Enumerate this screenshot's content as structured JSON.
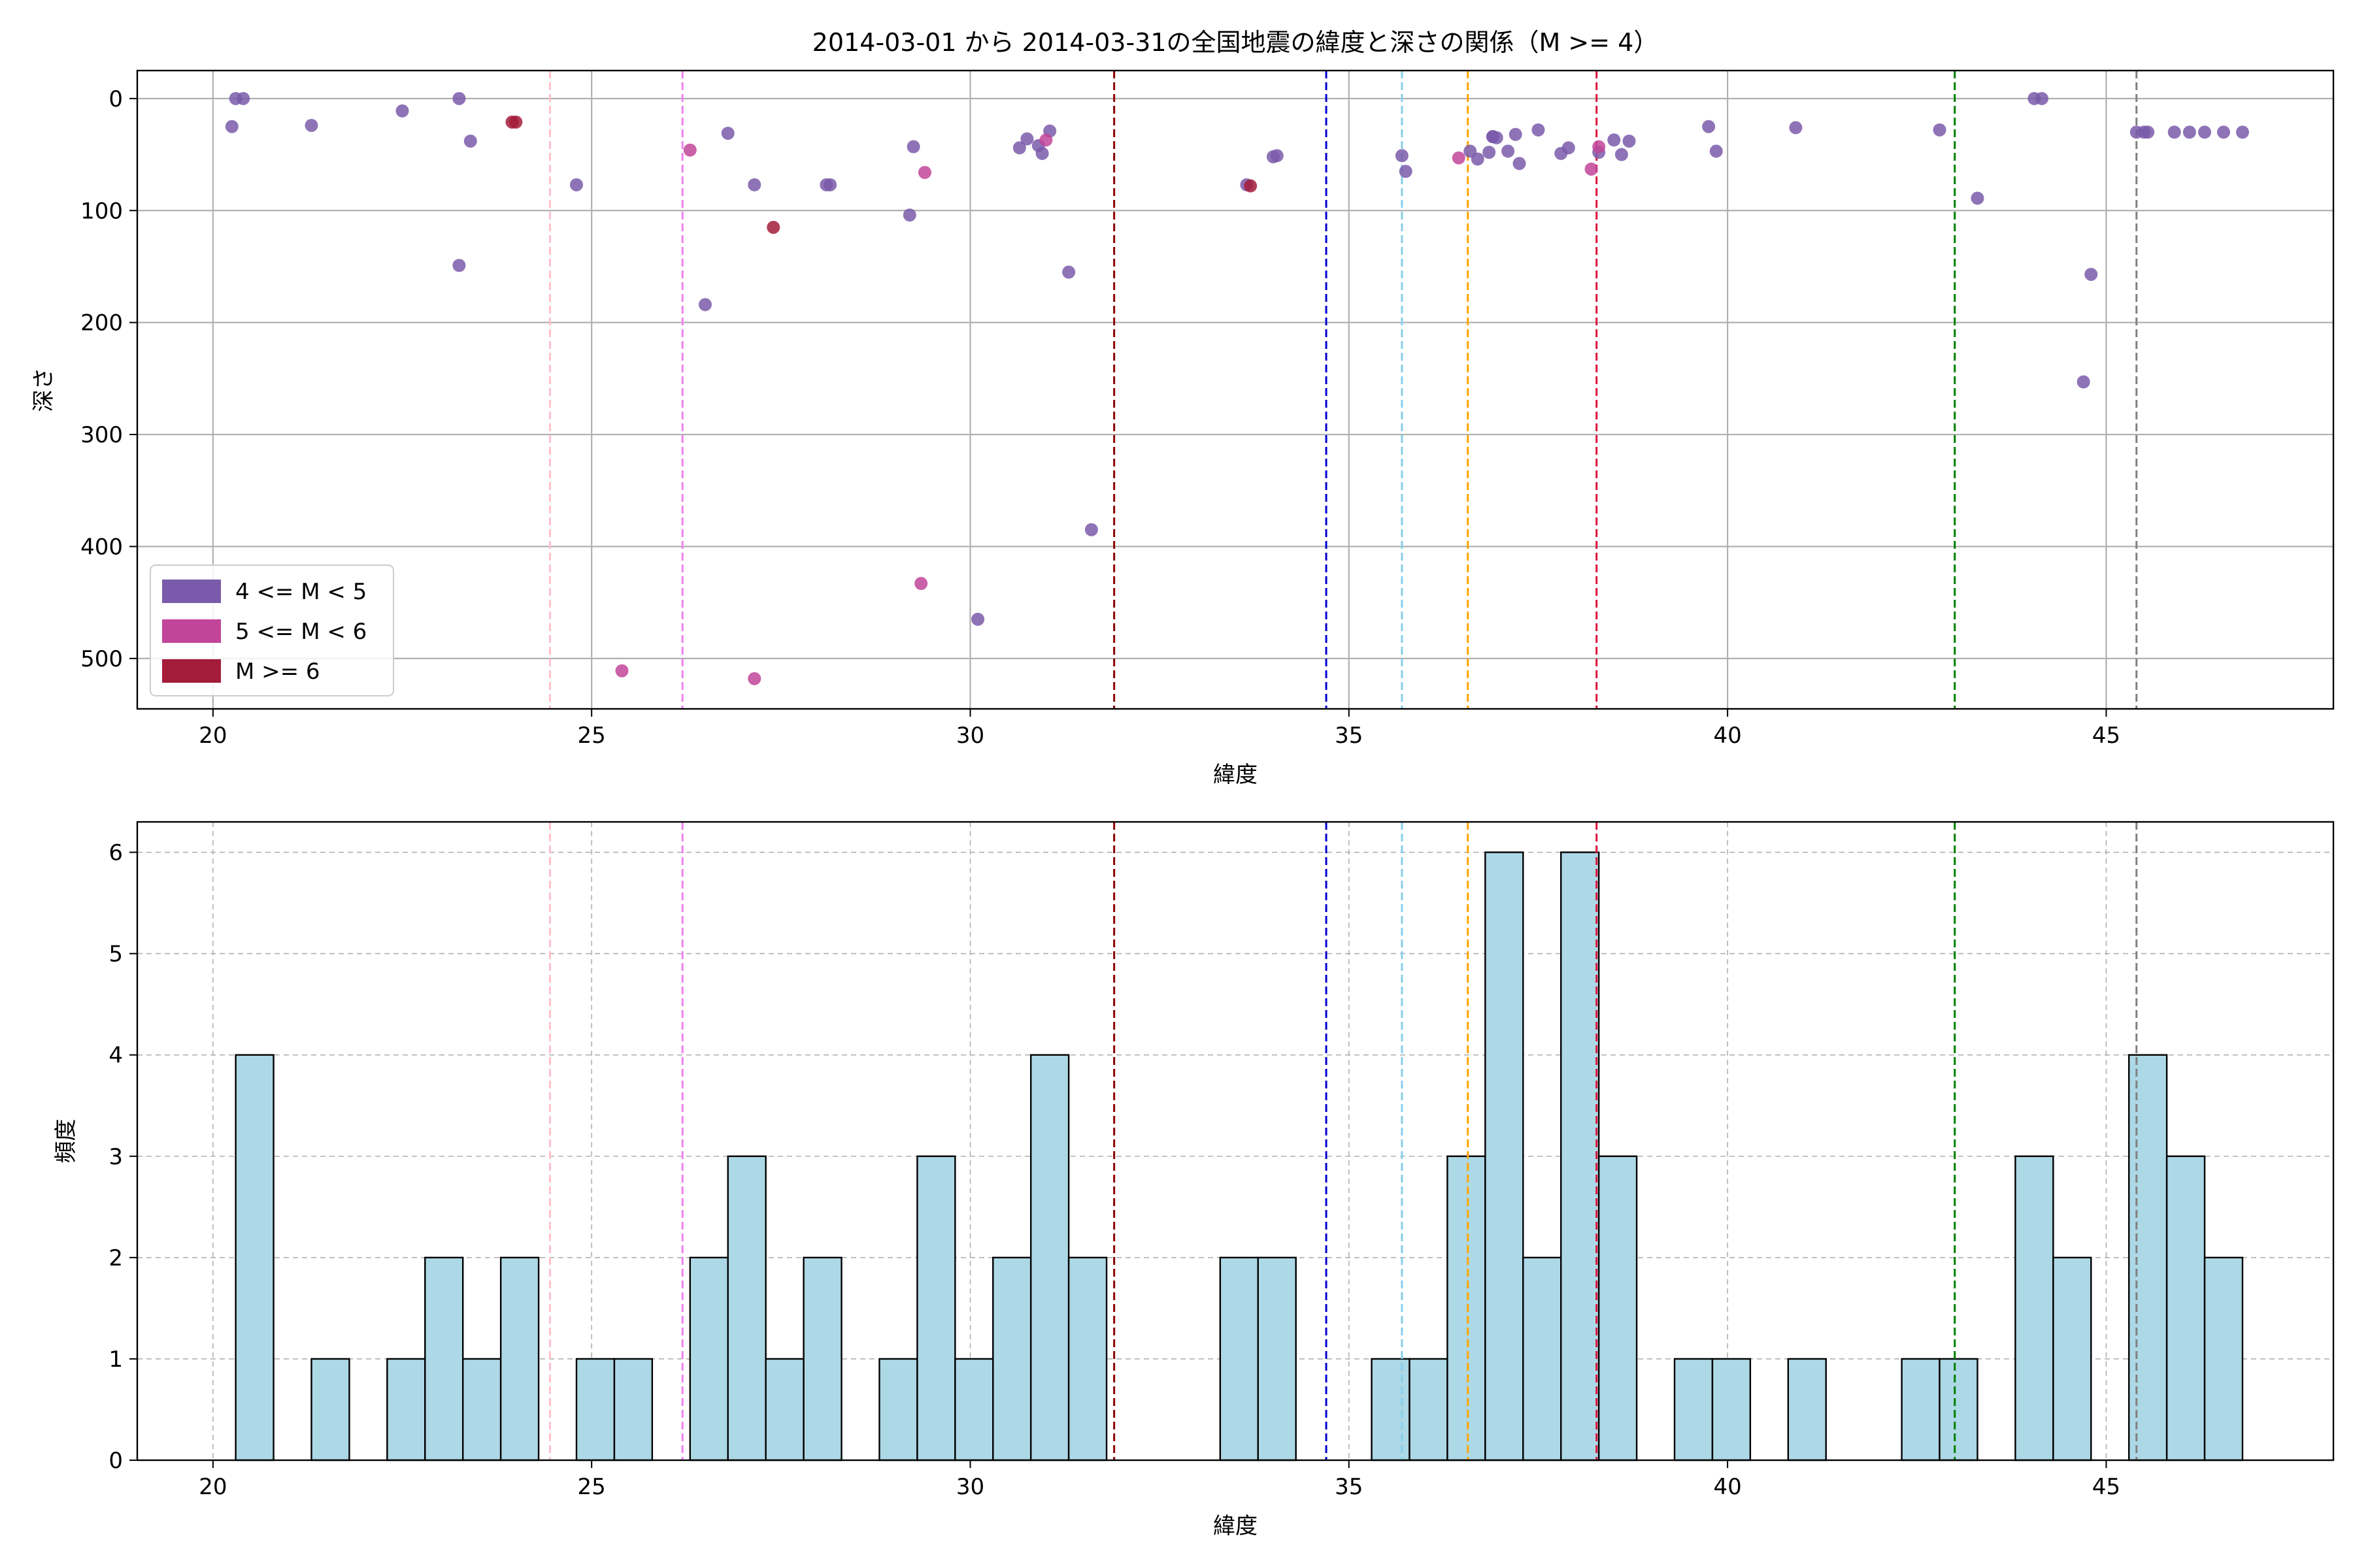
{
  "title": "2014-03-01 から 2014-03-31の全国地震の緯度と深さの関係（M >= 4）",
  "colors": {
    "m4": "#7a5aaa",
    "m5": "#c2459a",
    "m6": "#a31c3a",
    "hist_fill": "#add8e6",
    "grid": "#b0b0b0"
  },
  "chart_data": [
    {
      "type": "scatter",
      "xlabel": "緯度",
      "ylabel": "深さ",
      "xlim": [
        19,
        48
      ],
      "ylim": [
        545,
        -25
      ],
      "y_inverted": true,
      "xticks": [
        20,
        25,
        30,
        35,
        40,
        45
      ],
      "yticks": [
        0,
        100,
        200,
        300,
        400,
        500
      ],
      "grid": "solid",
      "legend_position": "lower-left",
      "series": [
        {
          "name": "4 <= M < 5",
          "color": "#7a5aaa",
          "points": [
            [
              20.3,
              0
            ],
            [
              20.4,
              0
            ],
            [
              20.25,
              25
            ],
            [
              21.3,
              24
            ],
            [
              22.5,
              11
            ],
            [
              23.25,
              0
            ],
            [
              23.4,
              38
            ],
            [
              23.25,
              149
            ],
            [
              24.8,
              77
            ],
            [
              26.8,
              31
            ],
            [
              27.15,
              77
            ],
            [
              26.5,
              184
            ],
            [
              28.1,
              77
            ],
            [
              28.15,
              77
            ],
            [
              29.25,
              43
            ],
            [
              29.2,
              104
            ],
            [
              30.65,
              44
            ],
            [
              30.75,
              36
            ],
            [
              30.9,
              42
            ],
            [
              30.95,
              49
            ],
            [
              31.05,
              29
            ],
            [
              31.3,
              155
            ],
            [
              31.6,
              385
            ],
            [
              30.1,
              465
            ],
            [
              33.65,
              77
            ],
            [
              34.0,
              52
            ],
            [
              34.05,
              51
            ],
            [
              35.7,
              51
            ],
            [
              35.75,
              65
            ],
            [
              36.6,
              47
            ],
            [
              36.7,
              54
            ],
            [
              36.85,
              48
            ],
            [
              36.9,
              34
            ],
            [
              36.95,
              35
            ],
            [
              36.9,
              34
            ],
            [
              37.1,
              47
            ],
            [
              37.2,
              32
            ],
            [
              37.25,
              58
            ],
            [
              37.5,
              28
            ],
            [
              37.8,
              49
            ],
            [
              37.9,
              44
            ],
            [
              38.3,
              48
            ],
            [
              38.5,
              37
            ],
            [
              38.6,
              50
            ],
            [
              38.7,
              38
            ],
            [
              39.75,
              25
            ],
            [
              39.85,
              47
            ],
            [
              40.9,
              26
            ],
            [
              42.8,
              28
            ],
            [
              43.3,
              89
            ],
            [
              44.05,
              0
            ],
            [
              44.15,
              0
            ],
            [
              44.7,
              253
            ],
            [
              44.8,
              157
            ],
            [
              45.4,
              30
            ],
            [
              45.5,
              30
            ],
            [
              45.55,
              30
            ],
            [
              45.9,
              30
            ],
            [
              46.1,
              30
            ],
            [
              46.3,
              30
            ],
            [
              46.55,
              30
            ],
            [
              46.8,
              30
            ]
          ]
        },
        {
          "name": "5 <= M < 6",
          "color": "#c2459a",
          "points": [
            [
              26.3,
              46
            ],
            [
              25.4,
              511
            ],
            [
              27.15,
              518
            ],
            [
              29.4,
              66
            ],
            [
              29.35,
              433
            ],
            [
              31.0,
              37
            ],
            [
              36.45,
              53
            ],
            [
              38.2,
              63
            ],
            [
              38.3,
              43
            ]
          ]
        },
        {
          "name": "M >= 6",
          "color": "#a31c3a",
          "points": [
            [
              23.95,
              21
            ],
            [
              24.0,
              21
            ],
            [
              27.4,
              115
            ],
            [
              33.7,
              78
            ]
          ]
        }
      ],
      "vlines": [
        {
          "x": 24.45,
          "color": "#ffc0cb"
        },
        {
          "x": 26.2,
          "color": "#ee82ee"
        },
        {
          "x": 31.9,
          "color": "#8b0000"
        },
        {
          "x": 34.7,
          "color": "#0000cd"
        },
        {
          "x": 35.7,
          "color": "#87ceeb"
        },
        {
          "x": 36.57,
          "color": "#ffa500"
        },
        {
          "x": 38.27,
          "color": "#dc143c"
        },
        {
          "x": 43.0,
          "color": "#008000"
        },
        {
          "x": 45.4,
          "color": "#808080"
        }
      ]
    },
    {
      "type": "bar",
      "xlabel": "緯度",
      "ylabel": "頻度",
      "xlim": [
        19,
        48
      ],
      "ylim": [
        0,
        6.3
      ],
      "xticks": [
        20,
        25,
        30,
        35,
        40,
        45
      ],
      "yticks": [
        0,
        1,
        2,
        3,
        4,
        5,
        6
      ],
      "grid": "dashed",
      "bin_width": 0.5,
      "bins": [
        {
          "x": 20.3,
          "value": 4
        },
        {
          "x": 21.3,
          "value": 1
        },
        {
          "x": 22.3,
          "value": 1
        },
        {
          "x": 22.8,
          "value": 2
        },
        {
          "x": 23.3,
          "value": 1
        },
        {
          "x": 23.8,
          "value": 2
        },
        {
          "x": 24.8,
          "value": 1
        },
        {
          "x": 25.3,
          "value": 1
        },
        {
          "x": 26.3,
          "value": 2
        },
        {
          "x": 26.8,
          "value": 3
        },
        {
          "x": 27.3,
          "value": 1
        },
        {
          "x": 27.8,
          "value": 2
        },
        {
          "x": 28.8,
          "value": 1
        },
        {
          "x": 29.3,
          "value": 3
        },
        {
          "x": 29.8,
          "value": 1
        },
        {
          "x": 30.3,
          "value": 2
        },
        {
          "x": 30.8,
          "value": 4
        },
        {
          "x": 31.3,
          "value": 2
        },
        {
          "x": 33.3,
          "value": 2
        },
        {
          "x": 33.8,
          "value": 2
        },
        {
          "x": 35.3,
          "value": 1
        },
        {
          "x": 35.8,
          "value": 1
        },
        {
          "x": 36.3,
          "value": 3
        },
        {
          "x": 36.8,
          "value": 6
        },
        {
          "x": 37.3,
          "value": 2
        },
        {
          "x": 37.8,
          "value": 6
        },
        {
          "x": 38.3,
          "value": 3
        },
        {
          "x": 39.3,
          "value": 1
        },
        {
          "x": 39.8,
          "value": 1
        },
        {
          "x": 40.8,
          "value": 1
        },
        {
          "x": 42.3,
          "value": 1
        },
        {
          "x": 42.8,
          "value": 1
        },
        {
          "x": 43.8,
          "value": 3
        },
        {
          "x": 44.3,
          "value": 2
        },
        {
          "x": 45.3,
          "value": 4
        },
        {
          "x": 45.8,
          "value": 3
        },
        {
          "x": 46.3,
          "value": 2
        }
      ],
      "vlines": [
        {
          "x": 24.45,
          "color": "#ffc0cb"
        },
        {
          "x": 26.2,
          "color": "#ee82ee"
        },
        {
          "x": 31.9,
          "color": "#8b0000"
        },
        {
          "x": 34.7,
          "color": "#0000cd"
        },
        {
          "x": 35.7,
          "color": "#87ceeb"
        },
        {
          "x": 36.57,
          "color": "#ffa500"
        },
        {
          "x": 38.27,
          "color": "#dc143c"
        },
        {
          "x": 43.0,
          "color": "#008000"
        },
        {
          "x": 45.4,
          "color": "#808080"
        }
      ]
    }
  ]
}
